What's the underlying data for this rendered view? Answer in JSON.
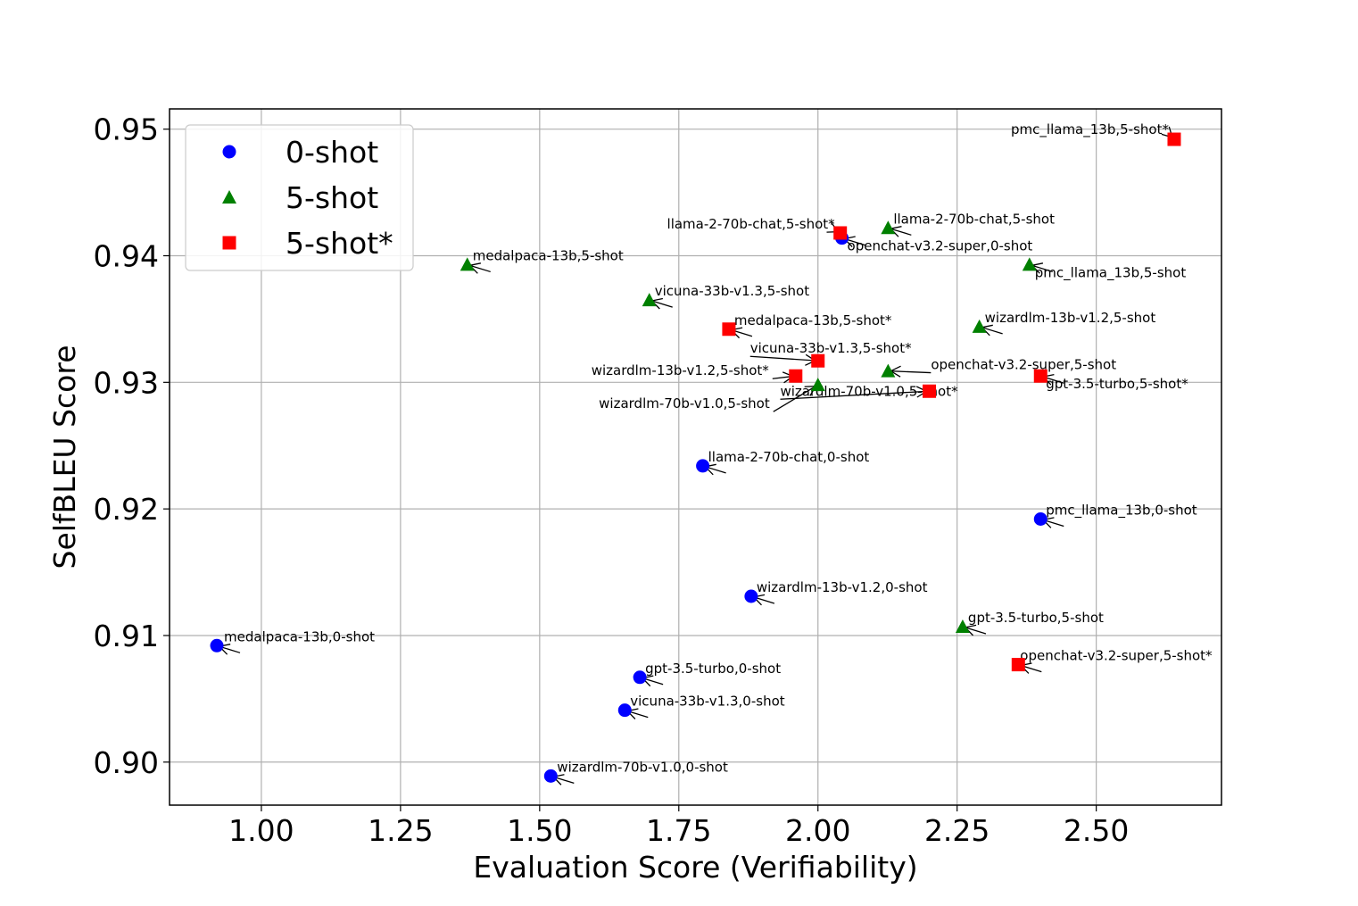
{
  "chart_data": {
    "type": "scatter",
    "title": "",
    "xlabel": "Evaluation Score (Verifiability)",
    "ylabel": "SelfBLEU Score",
    "xlim": [
      0.835,
      2.725
    ],
    "ylim": [
      0.8966,
      0.9516
    ],
    "xticks": [
      1.0,
      1.25,
      1.5,
      1.75,
      2.0,
      2.25,
      2.5
    ],
    "xtick_labels": [
      "1.00",
      "1.25",
      "1.50",
      "1.75",
      "2.00",
      "2.25",
      "2.50"
    ],
    "yticks": [
      0.9,
      0.91,
      0.92,
      0.93,
      0.94,
      0.95
    ],
    "ytick_labels": [
      "0.90",
      "0.91",
      "0.92",
      "0.93",
      "0.94",
      "0.95"
    ],
    "grid": true,
    "legend_position": "top-left",
    "series": [
      {
        "name": "0-shot",
        "marker": "circle",
        "color": "#0000ff",
        "points": [
          {
            "x": 0.92,
            "y": 0.9092,
            "label": "medalpaca-13b,0-shot"
          },
          {
            "x": 1.52,
            "y": 0.8989,
            "label": "wizardlm-70b-v1.0,0-shot"
          },
          {
            "x": 1.653,
            "y": 0.9041,
            "label": "vicuna-33b-v1.3,0-shot"
          },
          {
            "x": 1.68,
            "y": 0.9067,
            "label": "gpt-3.5-turbo,0-shot"
          },
          {
            "x": 1.88,
            "y": 0.9131,
            "label": "wizardlm-13b-v1.2,0-shot"
          },
          {
            "x": 1.793,
            "y": 0.9234,
            "label": "llama-2-70b-chat,0-shot"
          },
          {
            "x": 2.4,
            "y": 0.9192,
            "label": "pmc_llama_13b,0-shot"
          },
          {
            "x": 2.043,
            "y": 0.9414,
            "label": "openchat-v3.2-super,0-shot"
          }
        ]
      },
      {
        "name": "5-shot",
        "marker": "triangle",
        "color": "#008000",
        "points": [
          {
            "x": 1.37,
            "y": 0.9393,
            "label": "medalpaca-13b,5-shot"
          },
          {
            "x": 1.697,
            "y": 0.9365,
            "label": "vicuna-33b-v1.3,5-shot"
          },
          {
            "x": 2.126,
            "y": 0.9422,
            "label": "llama-2-70b-chat,5-shot"
          },
          {
            "x": 2.38,
            "y": 0.9393,
            "label": "pmc_llama_13b,5-shot"
          },
          {
            "x": 2.29,
            "y": 0.9344,
            "label": "wizardlm-13b-v1.2,5-shot"
          },
          {
            "x": 2.126,
            "y": 0.9309,
            "label": "openchat-v3.2-super,5-shot"
          },
          {
            "x": 2.0,
            "y": 0.9298,
            "label": "wizardlm-70b-v1.0,5-shot"
          },
          {
            "x": 2.26,
            "y": 0.9107,
            "label": "gpt-3.5-turbo,5-shot"
          }
        ]
      },
      {
        "name": "5-shot*",
        "marker": "square",
        "color": "#ff0000",
        "points": [
          {
            "x": 2.64,
            "y": 0.9492,
            "label": "pmc_llama_13b,5-shot*"
          },
          {
            "x": 2.04,
            "y": 0.9418,
            "label": "llama-2-70b-chat,5-shot*"
          },
          {
            "x": 1.84,
            "y": 0.9342,
            "label": "medalpaca-13b,5-shot*"
          },
          {
            "x": 2.0,
            "y": 0.9317,
            "label": "vicuna-33b-v1.3,5-shot*"
          },
          {
            "x": 1.96,
            "y": 0.9305,
            "label": "wizardlm-13b-v1.2,5-shot*"
          },
          {
            "x": 2.2,
            "y": 0.9293,
            "label": "wizardlm-70b-v1.0,5-shot*"
          },
          {
            "x": 2.4,
            "y": 0.9305,
            "label": "gpt-3.5-turbo,5-shot*"
          },
          {
            "x": 2.36,
            "y": 0.9077,
            "label": "openchat-v3.2-super,5-shot*"
          }
        ]
      }
    ]
  }
}
